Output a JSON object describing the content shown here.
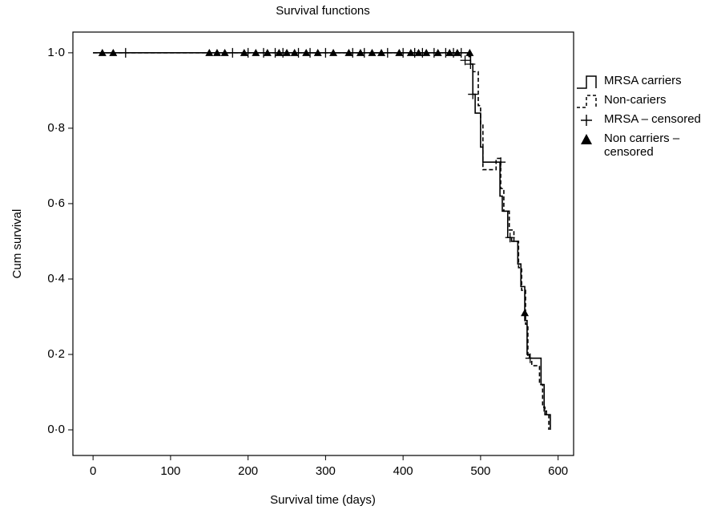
{
  "chart_data": {
    "type": "step",
    "title": "Survival functions",
    "x_label": "Survival time (days)",
    "y_label": "Cum survival",
    "xlim": [
      -26,
      620
    ],
    "ylim": [
      -0.068,
      1.055
    ],
    "xticks": [
      0,
      100,
      200,
      300,
      400,
      500,
      600
    ],
    "yticks": [
      {
        "value": 0,
        "label": "0·0"
      },
      {
        "value": 0.2,
        "label": "0·2"
      },
      {
        "value": 0.4,
        "label": "0·4"
      },
      {
        "value": 0.6,
        "label": "0·6"
      },
      {
        "value": 0.8,
        "label": "0·8"
      },
      {
        "value": 1,
        "label": "1·0"
      }
    ],
    "series": [
      {
        "name": "MRSA carriers",
        "color": "#000000",
        "dash": false,
        "x": [
          0,
          485,
          487,
          490,
          493,
          500,
          503,
          525,
          528,
          535,
          540,
          548,
          552,
          557,
          560,
          563,
          578,
          582,
          585,
          590
        ],
        "values": [
          1,
          0.99,
          0.97,
          0.89,
          0.84,
          0.75,
          0.71,
          0.62,
          0.58,
          0.51,
          0.5,
          0.44,
          0.38,
          0.29,
          0.2,
          0.19,
          0.12,
          0.05,
          0.04,
          0
        ]
      },
      {
        "name": "Non-cariers",
        "color": "#000000",
        "dash": true,
        "x": [
          0,
          487,
          490,
          497,
          500,
          503,
          520,
          526,
          530,
          537,
          543,
          549,
          553,
          558,
          561,
          566,
          576,
          580,
          583,
          588
        ],
        "values": [
          1,
          0.97,
          0.95,
          0.86,
          0.81,
          0.69,
          0.72,
          0.64,
          0.58,
          0.53,
          0.5,
          0.43,
          0.37,
          0.28,
          0.19,
          0.17,
          0.12,
          0.06,
          0.04,
          0
        ]
      }
    ],
    "censored": [
      {
        "name": "MRSA – censored",
        "marker": "plus",
        "color": "#000000",
        "x": [
          42,
          180,
          200,
          220,
          235,
          245,
          265,
          280,
          300,
          335,
          350,
          380,
          400,
          415,
          425,
          440,
          455,
          465,
          475,
          480,
          487,
          490,
          526,
          538,
          564
        ],
        "values": [
          1,
          1,
          1,
          1,
          1,
          1,
          1,
          1,
          1,
          1,
          1,
          1,
          1,
          1,
          1,
          1,
          1,
          1,
          1,
          0.98,
          0.97,
          0.89,
          0.71,
          0.51,
          0.19
        ]
      },
      {
        "name": "Non carriers – censored",
        "marker": "triangle",
        "color": "#000000",
        "x": [
          12,
          26,
          150,
          160,
          170,
          195,
          210,
          225,
          240,
          250,
          260,
          275,
          290,
          310,
          330,
          345,
          360,
          372,
          395,
          410,
          420,
          430,
          445,
          460,
          470,
          486,
          557
        ],
        "values": [
          1,
          1,
          1,
          1,
          1,
          1,
          1,
          1,
          1,
          1,
          1,
          1,
          1,
          1,
          1,
          1,
          1,
          1,
          1,
          1,
          1,
          1,
          1,
          1,
          1,
          1,
          0.31
        ]
      }
    ]
  }
}
